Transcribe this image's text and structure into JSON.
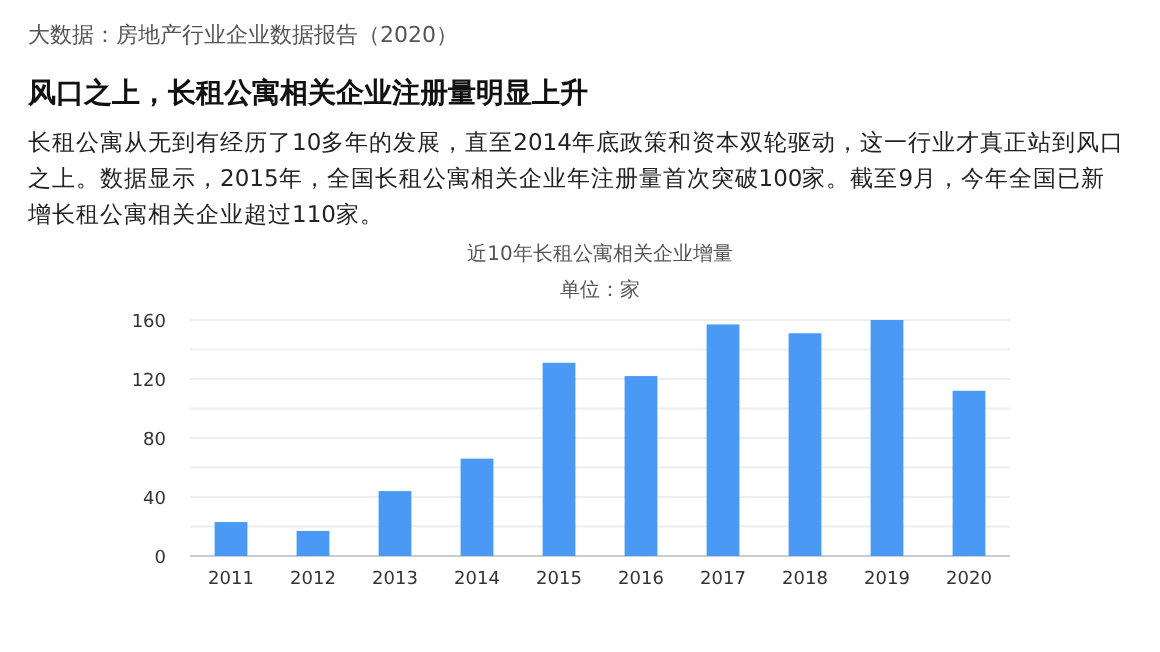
{
  "chart_data": {
    "type": "bar",
    "title": "风口之上，长租公寓相关企业注册量明显上升",
    "subtitle": "近10年长租公寓相关企业增量",
    "annotations": [
      "大数据：房地产行业企业数据报告（2020）",
      "长租公寓从无到有经历了10多年的发展，直至2014年底政策和资本双轮驱动，这一行业才真正站到风口之上。数据显示，2015年，全国长租公寓相关企业年注册量首次突破100家。截至9月，今年全国已新增长租公寓相关企业超过110家。",
      "单位：家"
    ],
    "categories": [
      "2011",
      "2012",
      "2013",
      "2014",
      "2015",
      "2016",
      "2017",
      "2018",
      "2019",
      "2020"
    ],
    "values": [
      23,
      17,
      44,
      66,
      131,
      122,
      157,
      151,
      160,
      112
    ],
    "color": "#4a9af5",
    "ylim": [
      0,
      160
    ],
    "yticks": [
      0,
      {
        "value": 20,
        "label": null
      },
      40,
      {
        "value": 60,
        "label": null
      },
      80,
      {
        "value": 100,
        "label": null
      },
      120,
      {
        "value": 140,
        "label": null
      },
      160
    ],
    "grid": "y"
  }
}
